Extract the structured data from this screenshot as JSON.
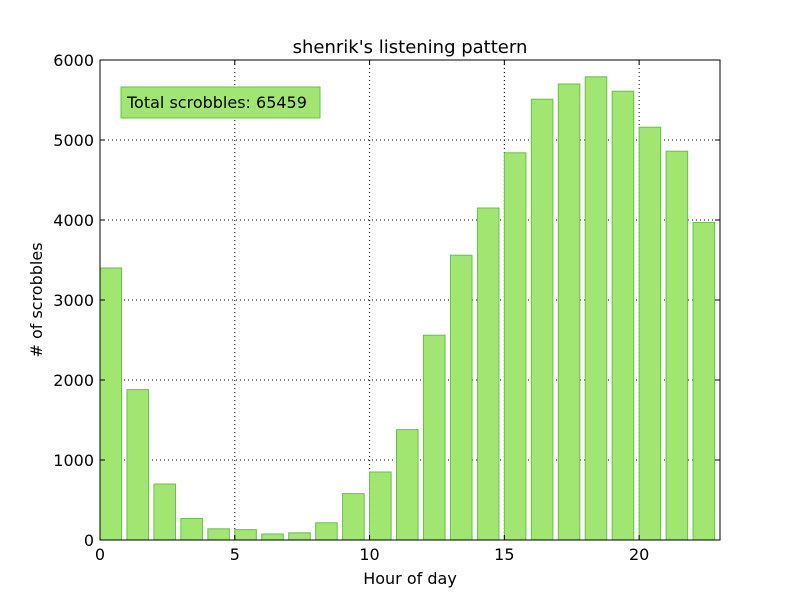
{
  "chart_data": {
    "type": "bar",
    "title": "shenrik's listening pattern",
    "xlabel": "Hour of day",
    "ylabel": "# of scrobbles",
    "x": [
      0,
      1,
      2,
      3,
      4,
      5,
      6,
      7,
      8,
      9,
      10,
      11,
      12,
      13,
      14,
      15,
      16,
      17,
      18,
      19,
      20,
      21,
      22
    ],
    "values": [
      3400,
      1880,
      700,
      270,
      140,
      130,
      75,
      90,
      215,
      580,
      850,
      1380,
      2560,
      3560,
      4150,
      4840,
      5510,
      5700,
      5790,
      5610,
      5160,
      4860,
      3970
    ],
    "xlim": [
      0,
      23
    ],
    "ylim": [
      0,
      6000
    ],
    "xticks": [
      0,
      5,
      10,
      15,
      20
    ],
    "yticks": [
      0,
      1000,
      2000,
      3000,
      4000,
      5000,
      6000
    ],
    "grid": true,
    "bar_color": "#a2e672",
    "bar_edge_color": "#6abf4b",
    "annotation": {
      "text": "Total scrobbles: 65459",
      "background": "#a2e672",
      "border": "#6abf4b"
    }
  }
}
